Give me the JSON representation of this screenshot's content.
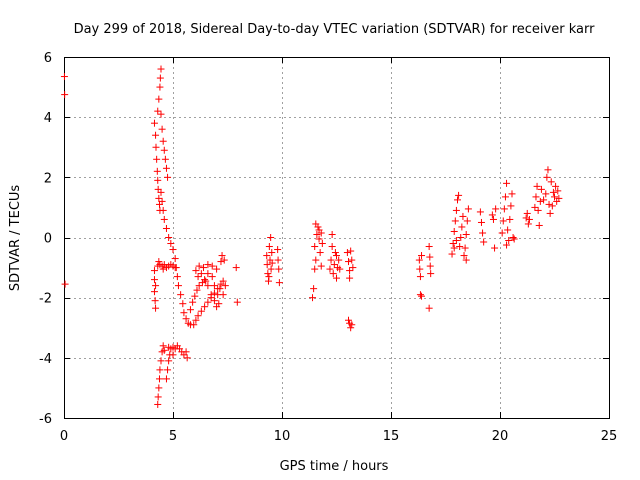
{
  "chart_data": {
    "type": "scatter",
    "title": "Day 299 of 2018, Sidereal Day-to-day VTEC variation (SDTVAR) for receiver karr",
    "xlabel": "GPS time / hours",
    "ylabel": "SDTVAR / TECUs",
    "xlim": [
      0,
      25
    ],
    "ylim": [
      -6,
      6
    ],
    "xticks": [
      "0",
      "5",
      "10",
      "15",
      "20",
      "25"
    ],
    "yticks": [
      "-6",
      "-4",
      "-2",
      "0",
      "2",
      "4",
      "6"
    ],
    "grid": true,
    "marker": "+",
    "color": "#ff0000",
    "series": [
      {
        "name": "SDTVAR",
        "points": [
          [
            0.02,
            5.35
          ],
          [
            0.03,
            4.75
          ],
          [
            0.05,
            -1.55
          ],
          [
            4.15,
            -1.1
          ],
          [
            4.15,
            -1.4
          ],
          [
            4.15,
            -1.8
          ],
          [
            4.18,
            -2.1
          ],
          [
            4.2,
            -2.35
          ],
          [
            4.2,
            -1.6
          ],
          [
            4.15,
            3.8
          ],
          [
            4.2,
            3.4
          ],
          [
            4.22,
            3.0
          ],
          [
            4.25,
            2.6
          ],
          [
            4.28,
            2.2
          ],
          [
            4.3,
            1.9
          ],
          [
            4.32,
            1.6
          ],
          [
            4.35,
            1.3
          ],
          [
            4.38,
            1.1
          ],
          [
            4.4,
            0.9
          ],
          [
            4.3,
            4.2
          ],
          [
            4.35,
            4.6
          ],
          [
            4.4,
            5.0
          ],
          [
            4.42,
            5.3
          ],
          [
            4.45,
            5.6
          ],
          [
            4.45,
            4.1
          ],
          [
            4.5,
            3.6
          ],
          [
            4.55,
            3.2
          ],
          [
            4.6,
            2.9
          ],
          [
            4.65,
            2.6
          ],
          [
            4.7,
            2.3
          ],
          [
            4.75,
            2.0
          ],
          [
            4.45,
            1.5
          ],
          [
            4.5,
            1.2
          ],
          [
            4.55,
            0.9
          ],
          [
            4.6,
            0.6
          ],
          [
            4.7,
            0.3
          ],
          [
            4.8,
            0.0
          ],
          [
            4.9,
            -0.2
          ],
          [
            5.0,
            -0.4
          ],
          [
            5.1,
            -0.7
          ],
          [
            5.15,
            -1.0
          ],
          [
            5.2,
            -1.3
          ],
          [
            5.25,
            -1.6
          ],
          [
            5.35,
            -1.9
          ],
          [
            5.45,
            -2.2
          ],
          [
            5.5,
            -2.5
          ],
          [
            5.6,
            -2.7
          ],
          [
            5.7,
            -2.85
          ],
          [
            5.8,
            -2.9
          ],
          [
            4.3,
            -0.95
          ],
          [
            4.4,
            -0.9
          ],
          [
            4.5,
            -0.95
          ],
          [
            4.6,
            -0.9
          ],
          [
            4.7,
            -1.0
          ],
          [
            4.8,
            -0.95
          ],
          [
            4.9,
            -0.9
          ],
          [
            5.0,
            -0.95
          ],
          [
            5.1,
            -1.0
          ],
          [
            4.35,
            -0.8
          ],
          [
            4.55,
            -1.05
          ],
          [
            4.3,
            -5.55
          ],
          [
            4.32,
            -5.3
          ],
          [
            4.35,
            -5.0
          ],
          [
            4.38,
            -4.7
          ],
          [
            4.4,
            -4.4
          ],
          [
            4.45,
            -4.1
          ],
          [
            4.5,
            -3.8
          ],
          [
            4.55,
            -3.6
          ],
          [
            4.6,
            -3.75
          ],
          [
            4.7,
            -4.7
          ],
          [
            4.75,
            -4.4
          ],
          [
            4.8,
            -4.1
          ],
          [
            4.85,
            -3.9
          ],
          [
            4.9,
            -3.7
          ],
          [
            5.0,
            -3.65
          ],
          [
            5.1,
            -3.7
          ],
          [
            5.2,
            -3.6
          ],
          [
            5.3,
            -3.7
          ],
          [
            5.4,
            -3.8
          ],
          [
            5.5,
            -3.9
          ],
          [
            5.6,
            -3.8
          ],
          [
            5.65,
            -4.0
          ],
          [
            5.0,
            -3.9
          ],
          [
            4.8,
            -3.65
          ],
          [
            5.95,
            -2.9
          ],
          [
            6.05,
            -2.75
          ],
          [
            6.15,
            -2.6
          ],
          [
            6.3,
            -2.45
          ],
          [
            6.45,
            -2.3
          ],
          [
            6.6,
            -2.15
          ],
          [
            6.75,
            -2.0
          ],
          [
            6.9,
            -1.85
          ],
          [
            7.05,
            -1.7
          ],
          [
            7.2,
            -1.55
          ],
          [
            7.3,
            -1.45
          ],
          [
            5.8,
            -2.4
          ],
          [
            5.9,
            -2.15
          ],
          [
            6.0,
            -1.95
          ],
          [
            6.1,
            -1.75
          ],
          [
            6.2,
            -1.6
          ],
          [
            6.35,
            -1.5
          ],
          [
            6.5,
            -1.45
          ],
          [
            6.6,
            -1.6
          ],
          [
            6.75,
            -1.9
          ],
          [
            6.9,
            -2.1
          ],
          [
            7.0,
            -2.3
          ],
          [
            7.1,
            -2.2
          ],
          [
            6.05,
            -1.1
          ],
          [
            6.15,
            -1.3
          ],
          [
            6.3,
            -1.2
          ],
          [
            6.45,
            -1.4
          ],
          [
            6.6,
            -1.2
          ],
          [
            6.8,
            -1.3
          ],
          [
            6.9,
            -1.6
          ],
          [
            7.05,
            -1.9
          ],
          [
            7.15,
            -1.7
          ],
          [
            7.3,
            -1.9
          ],
          [
            7.4,
            -1.6
          ],
          [
            6.2,
            -0.95
          ],
          [
            6.4,
            -1.0
          ],
          [
            6.6,
            -0.9
          ],
          [
            6.8,
            -0.95
          ],
          [
            7.0,
            -1.05
          ],
          [
            7.2,
            -0.8
          ],
          [
            7.25,
            -0.6
          ],
          [
            7.35,
            -0.75
          ],
          [
            7.9,
            -1.0
          ],
          [
            7.95,
            -2.15
          ],
          [
            9.3,
            -0.6
          ],
          [
            9.32,
            -0.9
          ],
          [
            9.35,
            -1.2
          ],
          [
            9.38,
            -1.45
          ],
          [
            9.42,
            -0.3
          ],
          [
            9.45,
            -0.75
          ],
          [
            9.48,
            0.0
          ],
          [
            9.5,
            -1.05
          ],
          [
            9.53,
            -0.5
          ],
          [
            9.55,
            -0.85
          ],
          [
            9.4,
            -1.3
          ],
          [
            9.8,
            -0.4
          ],
          [
            9.82,
            -0.75
          ],
          [
            9.85,
            -1.05
          ],
          [
            9.88,
            -1.5
          ],
          [
            11.4,
            -2.0
          ],
          [
            11.45,
            -1.7
          ],
          [
            11.5,
            -1.05
          ],
          [
            11.55,
            -0.75
          ],
          [
            11.5,
            -0.3
          ],
          [
            11.6,
            0.1
          ],
          [
            11.65,
            0.35
          ],
          [
            11.7,
            -0.05
          ],
          [
            11.75,
            -0.5
          ],
          [
            11.8,
            -0.95
          ],
          [
            11.7,
            0.25
          ],
          [
            11.85,
            -0.2
          ],
          [
            11.55,
            0.45
          ],
          [
            11.8,
            0.15
          ],
          [
            12.2,
            -1.05
          ],
          [
            12.25,
            -0.75
          ],
          [
            12.3,
            -0.3
          ],
          [
            12.35,
            -1.2
          ],
          [
            12.4,
            -0.9
          ],
          [
            12.45,
            -0.5
          ],
          [
            12.5,
            -1.35
          ],
          [
            12.55,
            -1.0
          ],
          [
            12.6,
            -0.75
          ],
          [
            12.65,
            -1.05
          ],
          [
            12.3,
            0.1
          ],
          [
            12.5,
            -0.6
          ],
          [
            13.0,
            -0.5
          ],
          [
            13.05,
            -0.8
          ],
          [
            13.1,
            -1.1
          ],
          [
            13.1,
            -1.35
          ],
          [
            13.15,
            -0.45
          ],
          [
            13.2,
            -0.75
          ],
          [
            13.25,
            -1.0
          ],
          [
            13.05,
            -2.75
          ],
          [
            13.1,
            -2.85
          ],
          [
            13.15,
            -3.0
          ],
          [
            13.2,
            -2.9
          ],
          [
            16.3,
            -0.75
          ],
          [
            16.32,
            -1.05
          ],
          [
            16.35,
            -1.3
          ],
          [
            16.4,
            -0.6
          ],
          [
            16.35,
            -1.9
          ],
          [
            16.4,
            -1.95
          ],
          [
            16.75,
            -0.3
          ],
          [
            16.78,
            -0.65
          ],
          [
            16.8,
            -0.95
          ],
          [
            16.82,
            -1.2
          ],
          [
            16.75,
            -2.35
          ],
          [
            17.8,
            -0.55
          ],
          [
            17.85,
            -0.2
          ],
          [
            17.9,
            0.2
          ],
          [
            17.95,
            0.55
          ],
          [
            18.0,
            0.9
          ],
          [
            18.05,
            1.25
          ],
          [
            18.1,
            1.4
          ],
          [
            18.15,
            -0.3
          ],
          [
            18.2,
            0.0
          ],
          [
            18.25,
            0.35
          ],
          [
            18.3,
            0.7
          ],
          [
            18.35,
            -0.6
          ],
          [
            18.4,
            -0.35
          ],
          [
            18.45,
            0.1
          ],
          [
            18.5,
            0.55
          ],
          [
            18.55,
            0.95
          ],
          [
            18.45,
            -0.75
          ],
          [
            17.9,
            -0.35
          ],
          [
            18.0,
            -0.1
          ],
          [
            19.1,
            0.85
          ],
          [
            19.15,
            0.5
          ],
          [
            19.2,
            0.15
          ],
          [
            19.25,
            -0.15
          ],
          [
            19.65,
            0.75
          ],
          [
            19.7,
            0.6
          ],
          [
            19.8,
            0.95
          ],
          [
            19.75,
            -0.35
          ],
          [
            20.1,
            0.15
          ],
          [
            20.15,
            0.55
          ],
          [
            20.2,
            0.95
          ],
          [
            20.25,
            1.35
          ],
          [
            20.3,
            1.8
          ],
          [
            20.35,
            0.25
          ],
          [
            20.4,
            -0.1
          ],
          [
            20.45,
            0.6
          ],
          [
            20.5,
            1.05
          ],
          [
            20.55,
            1.45
          ],
          [
            20.6,
            0.0
          ],
          [
            20.65,
            -0.05
          ],
          [
            20.3,
            -0.25
          ],
          [
            21.2,
            0.65
          ],
          [
            21.25,
            0.8
          ],
          [
            21.3,
            0.45
          ],
          [
            21.35,
            0.6
          ],
          [
            21.6,
            1.0
          ],
          [
            21.65,
            1.35
          ],
          [
            21.7,
            1.7
          ],
          [
            21.75,
            0.9
          ],
          [
            21.8,
            0.4
          ],
          [
            21.85,
            1.2
          ],
          [
            21.9,
            1.6
          ],
          [
            22.0,
            1.25
          ],
          [
            22.1,
            1.45
          ],
          [
            22.15,
            2.0
          ],
          [
            22.2,
            2.25
          ],
          [
            22.25,
            1.1
          ],
          [
            22.3,
            0.8
          ],
          [
            22.35,
            1.85
          ],
          [
            22.4,
            1.05
          ],
          [
            22.45,
            1.5
          ],
          [
            22.5,
            1.35
          ],
          [
            22.55,
            1.7
          ],
          [
            22.6,
            1.2
          ],
          [
            22.65,
            1.55
          ],
          [
            22.7,
            1.3
          ]
        ]
      }
    ]
  }
}
